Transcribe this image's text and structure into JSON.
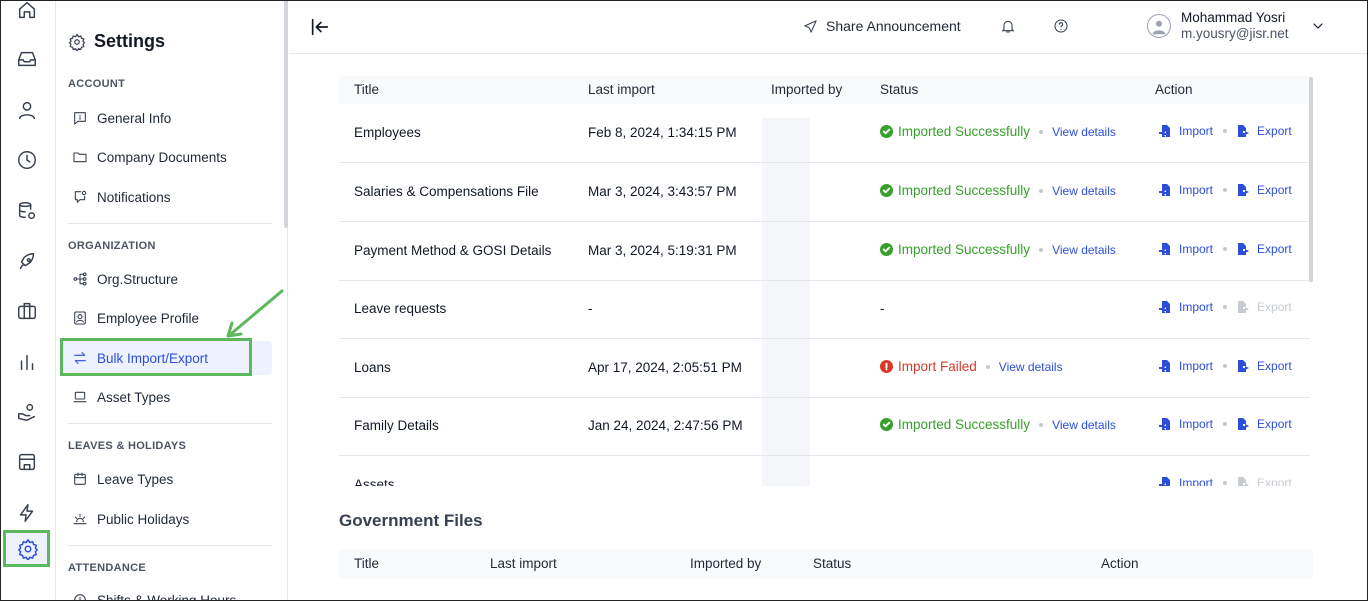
{
  "rail": {
    "items": [
      "home-icon",
      "inbox-icon",
      "user-icon",
      "clock-icon",
      "database-icon",
      "rocket-icon",
      "briefcase-icon",
      "chart-icon",
      "hand-coin-icon",
      "store-icon",
      "bolt-icon",
      "gear-icon"
    ]
  },
  "sidebar": {
    "title": "Settings",
    "sections": {
      "account": "ACCOUNT",
      "organization": "ORGANIZATION",
      "leaves": "LEAVES & HOLIDAYS",
      "attendance": "ATTENDANCE"
    },
    "items": {
      "general_info": "General Info",
      "company_documents": "Company Documents",
      "notifications": "Notifications",
      "org_structure": "Org.Structure",
      "employee_profile": "Employee Profile",
      "bulk_import_export": "Bulk Import/Export",
      "asset_types": "Asset Types",
      "leave_types": "Leave Types",
      "public_holidays": "Public Holidays",
      "shifts": "Shifts & Working Hours"
    }
  },
  "header": {
    "share_label": "Share Announcement",
    "user_name": "Mohammad Yosri",
    "user_email": "m.yousry@jisr.net"
  },
  "table": {
    "headers": {
      "title": "Title",
      "last_import": "Last import",
      "imported_by": "Imported by",
      "status": "Status",
      "action": "Action"
    },
    "rows": [
      {
        "title": "Employees",
        "last_import": "Feb 8, 2024, 1:34:15 PM",
        "status": "Imported Successfully",
        "view": "View details",
        "import": "Import",
        "export": "Export"
      },
      {
        "title": "Salaries & Compensations File",
        "last_import": "Mar 3, 2024, 3:43:57 PM",
        "status": "Imported Successfully",
        "view": "View details",
        "import": "Import",
        "export": "Export"
      },
      {
        "title": "Payment Method & GOSI Details",
        "last_import": "Mar 3, 2024, 5:19:31 PM",
        "status": "Imported Successfully",
        "view": "View details",
        "import": "Import",
        "export": "Export"
      },
      {
        "title": "Leave requests",
        "last_import": "-",
        "status": "-",
        "import": "Import",
        "export": "Export"
      },
      {
        "title": "Loans",
        "last_import": "Apr 17, 2024, 2:05:51 PM",
        "status": "Import Failed",
        "view": "View details",
        "import": "Import",
        "export": "Export"
      },
      {
        "title": "Family Details",
        "last_import": "Jan 24, 2024, 2:47:56 PM",
        "status": "Imported Successfully",
        "view": "View details",
        "import": "Import",
        "export": "Export"
      },
      {
        "title": "Assets",
        "import": "Import",
        "export": "Export"
      }
    ]
  },
  "government": {
    "title": "Government Files",
    "headers": {
      "title": "Title",
      "last_import": "Last import",
      "imported_by": "Imported by",
      "status": "Status",
      "action": "Action"
    }
  },
  "colors": {
    "accent": "#2d4ed8",
    "success": "#37a02a",
    "error": "#d73a2b",
    "highlight": "#5cb85c"
  }
}
